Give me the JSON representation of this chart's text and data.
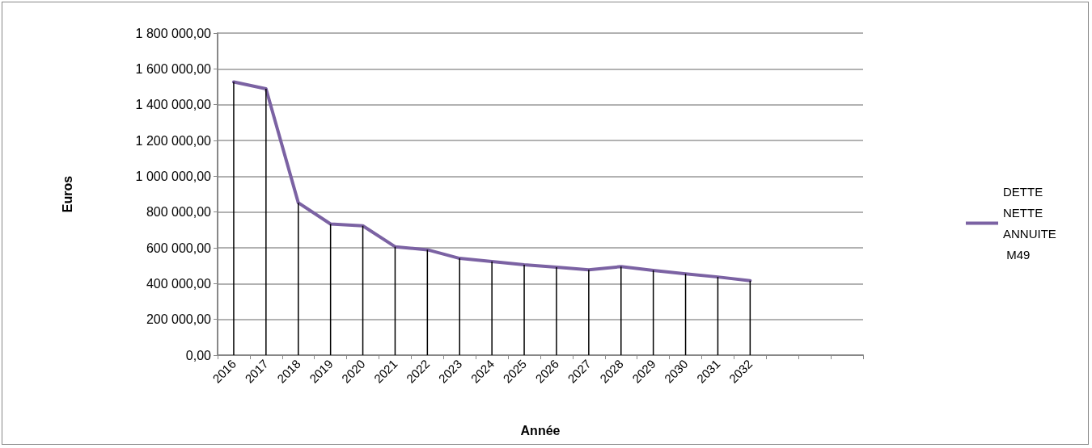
{
  "chart_data": {
    "type": "line",
    "xlabel": "Année",
    "ylabel": "Euros",
    "categories": [
      "2016",
      "2017",
      "2018",
      "2019",
      "2020",
      "2021",
      "2022",
      "2023",
      "2024",
      "2025",
      "2026",
      "2027",
      "2028",
      "2029",
      "2030",
      "2031",
      "2032",
      null,
      null,
      null
    ],
    "series": [
      {
        "name": "DETTE NETTE ANNUITE M49",
        "color": "#7b62a3",
        "values": [
          1527000,
          1489000,
          852000,
          733000,
          723000,
          606000,
          589000,
          541000,
          523000,
          505000,
          492000,
          477000,
          495000,
          474000,
          455000,
          437000,
          416000,
          null,
          null,
          null
        ],
        "errors": [
          [
            0,
            1527000
          ],
          [
            0,
            1489000
          ],
          [
            0,
            852000
          ],
          [
            0,
            733000
          ],
          [
            0,
            723000
          ],
          [
            0,
            606000
          ],
          [
            0,
            589000
          ],
          [
            0,
            541000
          ],
          [
            0,
            523000
          ],
          [
            0,
            505000
          ],
          [
            0,
            492000
          ],
          [
            0,
            477000
          ],
          [
            0,
            495000
          ],
          [
            0,
            474000
          ],
          [
            0,
            455000
          ],
          [
            0,
            437000
          ],
          [
            0,
            416000
          ],
          null,
          null,
          null
        ]
      }
    ],
    "ylim": [
      0,
      1800000
    ],
    "yticks": [
      {
        "value": 0,
        "label": "0,00"
      },
      {
        "value": 200000,
        "label": "200 000,00"
      },
      {
        "value": 400000,
        "label": "400 000,00"
      },
      {
        "value": 600000,
        "label": "600 000,00"
      },
      {
        "value": 800000,
        "label": "800 000,00"
      },
      {
        "value": 1000000,
        "label": "1 000 000,00"
      },
      {
        "value": 1200000,
        "label": "1 200 000,00"
      },
      {
        "value": 1400000,
        "label": "1 400 000,00"
      },
      {
        "value": 1600000,
        "label": "1 600 000,00"
      },
      {
        "value": 1800000,
        "label": "1 800 000,00"
      }
    ],
    "grid": "y",
    "legend": "right",
    "marker": "none",
    "line_style": "solid"
  }
}
